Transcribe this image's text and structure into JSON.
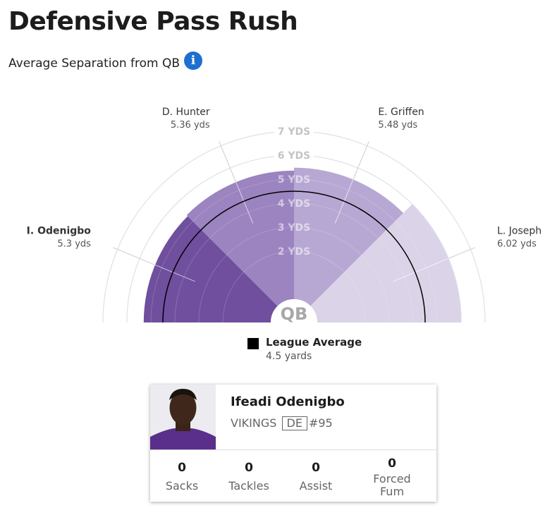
{
  "header": {
    "title": "Defensive Pass Rush",
    "subtitle": "Average Separation from QB",
    "info_icon": "info-icon"
  },
  "chart_data": {
    "type": "polar-bar",
    "center_label": "QB",
    "radial_axis": {
      "ticks": [
        2,
        3,
        4,
        5,
        6,
        7
      ],
      "tick_labels": [
        "2 YDS",
        "3 YDS",
        "4 YDS",
        "5 YDS",
        "6 YDS",
        "7 YDS"
      ],
      "max": 7
    },
    "series": [
      {
        "label": "I. Odenigbo",
        "value_label": "5.3 yds",
        "value": 5.3,
        "color": "#6f4f9e",
        "highlight": true
      },
      {
        "label": "D. Hunter",
        "value_label": "5.36 yds",
        "value": 5.36,
        "color": "#9b84bf",
        "highlight": false
      },
      {
        "label": "E. Griffen",
        "value_label": "5.48 yds",
        "value": 5.48,
        "color": "#b7a8d3",
        "highlight": false
      },
      {
        "label": "L. Joseph",
        "value_label": "6.02 yds",
        "value": 6.02,
        "color": "#dbd3e8",
        "highlight": false
      }
    ],
    "league_average": {
      "label": "League Average",
      "value_label": "4.5 yards",
      "value": 4.5,
      "color": "#000000"
    }
  },
  "player_card": {
    "name": "Ifeadi Odenigbo",
    "team": "VIKINGS",
    "position": "DE",
    "number": "#95",
    "stats": [
      {
        "value": "0",
        "label": "Sacks"
      },
      {
        "value": "0",
        "label": "Tackles"
      },
      {
        "value": "0",
        "label": "Assist"
      },
      {
        "value": "0",
        "label": "Forced Fum"
      }
    ]
  }
}
